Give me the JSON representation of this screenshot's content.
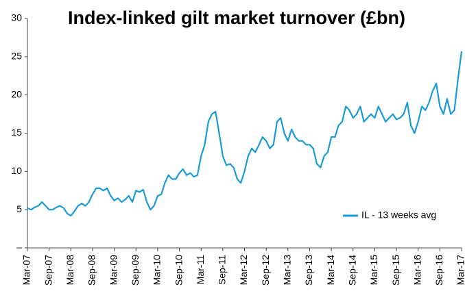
{
  "chart_data": {
    "type": "line",
    "title": "Index-linked gilt market turnover (£bn)",
    "categories": [
      "Mar-07",
      null,
      null,
      null,
      null,
      null,
      "Sep-07",
      null,
      null,
      null,
      null,
      null,
      "Mar-08",
      null,
      null,
      null,
      null,
      null,
      "Sep-08",
      null,
      null,
      null,
      null,
      null,
      "Mar-09",
      null,
      null,
      null,
      null,
      null,
      "Sep-09",
      null,
      null,
      null,
      null,
      null,
      "Mar-10",
      null,
      null,
      null,
      null,
      null,
      "Sep-10",
      null,
      null,
      null,
      null,
      null,
      "Mar-11",
      null,
      null,
      null,
      null,
      null,
      "Sep-11",
      null,
      null,
      null,
      null,
      null,
      "Mar-12",
      null,
      null,
      null,
      null,
      null,
      "Sep-12",
      null,
      null,
      null,
      null,
      null,
      "Mar-13",
      null,
      null,
      null,
      null,
      null,
      "Sep-13",
      null,
      null,
      null,
      null,
      null,
      "Mar-14",
      null,
      null,
      null,
      null,
      null,
      "Sep-14",
      null,
      null,
      null,
      null,
      null,
      "Mar-15",
      null,
      null,
      null,
      null,
      null,
      "Sep-15",
      null,
      null,
      null,
      null,
      null,
      "Mar-16",
      null,
      null,
      null,
      null,
      null,
      "Sep-16",
      null,
      null,
      null,
      null,
      null,
      "Mar-17"
    ],
    "series": [
      {
        "name": "IL - 13 weeks avg",
        "color": "#1a9ad6",
        "values": [
          5.2,
          5.0,
          5.3,
          5.5,
          6.0,
          5.5,
          5.0,
          5.0,
          5.3,
          5.5,
          5.2,
          4.5,
          4.2,
          4.8,
          5.5,
          5.8,
          5.5,
          6.0,
          7.0,
          7.8,
          7.8,
          7.5,
          7.8,
          6.8,
          6.2,
          6.5,
          6.0,
          6.3,
          6.8,
          6.0,
          7.5,
          7.3,
          7.6,
          6.0,
          5.0,
          5.5,
          6.8,
          7.0,
          8.5,
          9.5,
          9.0,
          9.0,
          9.8,
          10.3,
          9.5,
          9.8,
          9.3,
          9.5,
          12.0,
          13.5,
          16.5,
          17.5,
          17.8,
          15.0,
          12.0,
          10.8,
          11.0,
          10.5,
          9.0,
          8.5,
          10.0,
          12.0,
          13.0,
          12.5,
          13.5,
          14.5,
          14.0,
          13.0,
          13.5,
          16.5,
          17.0,
          15.0,
          14.0,
          15.5,
          14.5,
          14.0,
          14.0,
          13.5,
          13.5,
          13.0,
          11.0,
          10.5,
          12.0,
          12.5,
          14.5,
          14.5,
          16.0,
          16.5,
          18.5,
          18.0,
          17.0,
          17.5,
          18.5,
          16.5,
          17.0,
          17.5,
          17.0,
          18.5,
          17.5,
          16.5,
          17.0,
          17.5,
          16.8,
          17.0,
          17.5,
          19.0,
          16.0,
          15.0,
          16.5,
          18.5,
          18.0,
          19.0,
          20.5,
          21.5,
          18.5,
          17.5,
          19.5,
          17.5,
          18.0,
          22.0,
          25.7
        ]
      }
    ],
    "ylim": [
      0,
      30
    ],
    "yticks": [
      {
        "value": 0,
        "label": "–"
      },
      5,
      10,
      15,
      20,
      25,
      30
    ],
    "legend": "right"
  }
}
